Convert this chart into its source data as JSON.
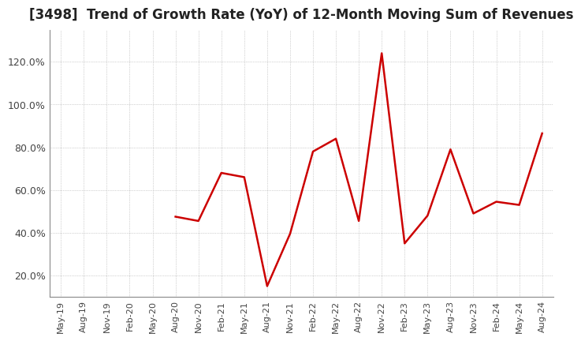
{
  "title": "[3498]  Trend of Growth Rate (YoY) of 12-Month Moving Sum of Revenues",
  "title_fontsize": 12,
  "line_color": "#cc0000",
  "background_color": "#ffffff",
  "grid_color": "#aaaaaa",
  "ylim": [
    0.1,
    1.35
  ],
  "yticks": [
    0.2,
    0.4,
    0.6,
    0.8,
    1.0,
    1.2
  ],
  "ytick_labels": [
    "20.0%",
    "40.0%",
    "60.0%",
    "80.0%",
    "100.0%",
    "120.0%"
  ],
  "dates": [
    "May-19",
    "Aug-19",
    "Nov-19",
    "Feb-20",
    "May-20",
    "Aug-20",
    "Nov-20",
    "Feb-21",
    "May-21",
    "Aug-21",
    "Nov-21",
    "Feb-22",
    "May-22",
    "Aug-22",
    "Nov-22",
    "Feb-23",
    "May-23",
    "Aug-23",
    "Nov-23",
    "Feb-24",
    "May-24",
    "Aug-24"
  ],
  "values": [
    null,
    null,
    null,
    null,
    null,
    0.475,
    0.455,
    0.68,
    0.66,
    0.15,
    0.395,
    0.78,
    0.84,
    0.455,
    1.24,
    0.35,
    0.48,
    0.79,
    0.49,
    0.545,
    0.53,
    0.865
  ]
}
